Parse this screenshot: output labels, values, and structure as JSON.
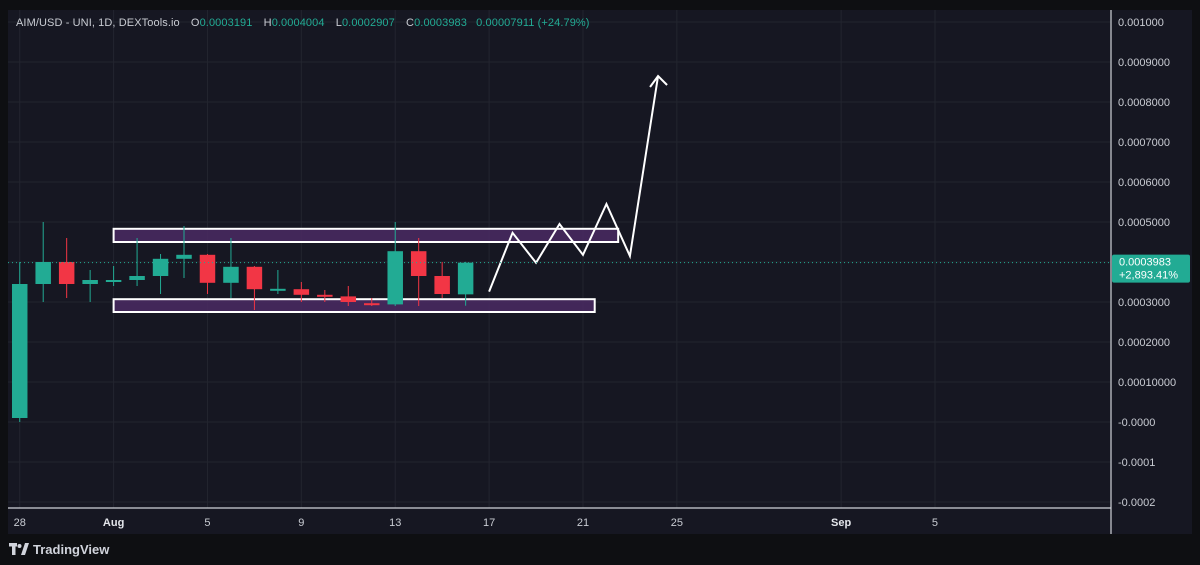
{
  "legend": {
    "symbol": "AIM/USD - UNI, 1D, DEXTools.io",
    "open_key": "O",
    "open": "0.0003191",
    "high_key": "H",
    "high": "0.0004004",
    "low_key": "L",
    "low": "0.0002907",
    "close_key": "C",
    "close": "0.0003983",
    "change": "0.00007911 (+24.79%)"
  },
  "last_price": {
    "value": "0.0003983",
    "change_pct": "+2,893.41%"
  },
  "brand": {
    "name": "TradingView"
  },
  "colors": {
    "up": "#22ab94",
    "down": "#f23645",
    "background": "#161722",
    "zone_fill": "#4a2a63",
    "annotation": "#ffffff"
  },
  "chart_data": {
    "type": "candlestick",
    "timeframe": "1D",
    "price_axis_labels": [
      "0.001000",
      "0.0009000",
      "0.0008000",
      "0.0007000",
      "0.0006000",
      "0.0005000",
      "0.0004000",
      "0.0003000",
      "0.0002000",
      "0.00010000",
      "-0.0000",
      "-0.0001",
      "-0.0002"
    ],
    "price_axis_values": [
      0.001,
      0.0009,
      0.0008,
      0.0007,
      0.0006,
      0.0005,
      0.0004,
      0.0003,
      0.0002,
      0.0001,
      0,
      -0.0001,
      -0.0002
    ],
    "ylim": [
      -0.0002,
      0.001
    ],
    "x_range_days": [
      -4.5,
      42.5
    ],
    "time_axis_labels": [
      {
        "day": -4,
        "label": "28",
        "bold": false
      },
      {
        "day": 0,
        "label": "Aug",
        "bold": true
      },
      {
        "day": 4,
        "label": "5",
        "bold": false
      },
      {
        "day": 8,
        "label": "9",
        "bold": false
      },
      {
        "day": 12,
        "label": "13",
        "bold": false
      },
      {
        "day": 16,
        "label": "17",
        "bold": false
      },
      {
        "day": 20,
        "label": "21",
        "bold": false
      },
      {
        "day": 24,
        "label": "25",
        "bold": false
      },
      {
        "day": 31,
        "label": "Sep",
        "bold": true
      },
      {
        "day": 35,
        "label": "5",
        "bold": false
      }
    ],
    "candles": [
      {
        "day": -4,
        "open": 1e-05,
        "high": 0.0004,
        "low": 0.0,
        "close": 0.000345
      },
      {
        "day": -3,
        "open": 0.000345,
        "high": 0.0005,
        "low": 0.0003,
        "close": 0.0004
      },
      {
        "day": -2,
        "open": 0.0004,
        "high": 0.00046,
        "low": 0.00031,
        "close": 0.000345
      },
      {
        "day": -1,
        "open": 0.000345,
        "high": 0.00038,
        "low": 0.0003,
        "close": 0.000355
      },
      {
        "day": 0,
        "open": 0.000355,
        "high": 0.00039,
        "low": 0.00034,
        "close": 0.000355
      },
      {
        "day": 1,
        "open": 0.000355,
        "high": 0.00046,
        "low": 0.00034,
        "close": 0.000365
      },
      {
        "day": 2,
        "open": 0.000365,
        "high": 0.00042,
        "low": 0.00032,
        "close": 0.000408
      },
      {
        "day": 3,
        "open": 0.000408,
        "high": 0.00049,
        "low": 0.00036,
        "close": 0.000418
      },
      {
        "day": 4,
        "open": 0.000418,
        "high": 0.00042,
        "low": 0.00032,
        "close": 0.000348
      },
      {
        "day": 5,
        "open": 0.000348,
        "high": 0.00046,
        "low": 0.00031,
        "close": 0.000388
      },
      {
        "day": 6,
        "open": 0.000388,
        "high": 0.00039,
        "low": 0.00028,
        "close": 0.000332
      },
      {
        "day": 7,
        "open": 0.000333,
        "high": 0.00038,
        "low": 0.00032,
        "close": 0.000333
      },
      {
        "day": 8,
        "open": 0.000332,
        "high": 0.00035,
        "low": 0.0003,
        "close": 0.000318
      },
      {
        "day": 9,
        "open": 0.000318,
        "high": 0.00033,
        "low": 0.0003,
        "close": 0.000314
      },
      {
        "day": 10,
        "open": 0.000314,
        "high": 0.00034,
        "low": 0.00029,
        "close": 0.0003
      },
      {
        "day": 11,
        "open": 0.000297,
        "high": 0.00031,
        "low": 0.00029,
        "close": 0.000293
      },
      {
        "day": 12,
        "open": 0.000294,
        "high": 0.0005,
        "low": 0.00029,
        "close": 0.000427
      },
      {
        "day": 13,
        "open": 0.000427,
        "high": 0.00046,
        "low": 0.00029,
        "close": 0.000365
      },
      {
        "day": 14,
        "open": 0.000365,
        "high": 0.0004,
        "low": 0.00031,
        "close": 0.00032
      },
      {
        "day": 15,
        "open": 0.0003191,
        "high": 0.0004004,
        "low": 0.0002907,
        "close": 0.0003983
      }
    ],
    "zones": [
      {
        "day_start": 0,
        "day_end": 21.5,
        "price_top": 0.000483,
        "price_bottom": 0.00045
      },
      {
        "day_start": 0,
        "day_end": 20.5,
        "price_top": 0.000307,
        "price_bottom": 0.000275
      }
    ],
    "annotation_path": [
      [
        16,
        0.000326
      ],
      [
        17,
        0.000473
      ],
      [
        18,
        0.000398
      ],
      [
        19,
        0.000495
      ],
      [
        20,
        0.000418
      ],
      [
        21,
        0.000545
      ],
      [
        22,
        0.000415
      ],
      [
        23.2,
        0.000865
      ]
    ],
    "last_price_value": 0.0003983
  }
}
